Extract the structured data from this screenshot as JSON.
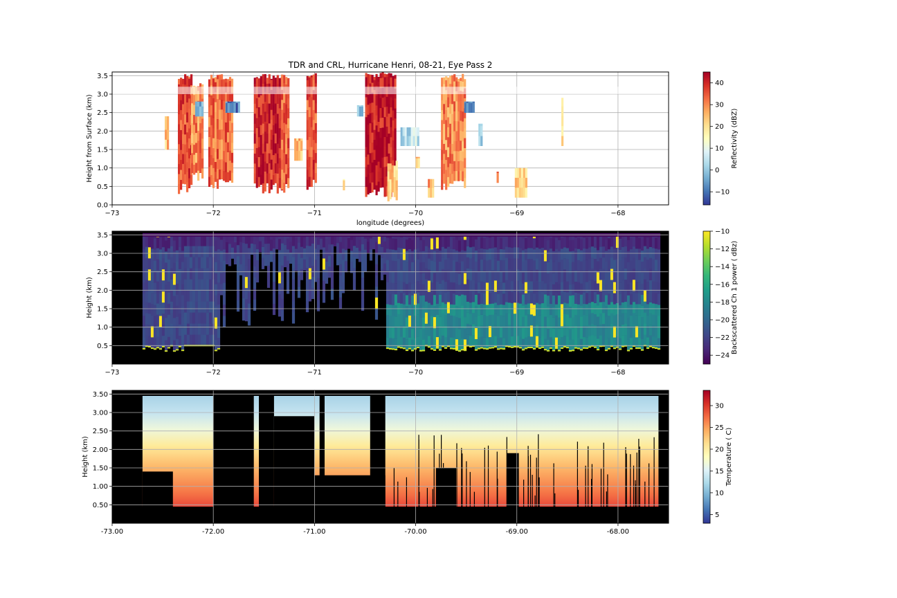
{
  "title": "TDR and CRL, Hurricane Henri, 08-21, Eye Pass 2",
  "chart_data": [
    {
      "type": "heatmap",
      "name": "tdr-reflectivity",
      "xlabel": "longitude (degrees)",
      "ylabel": "Height from Surface (km)",
      "xlim": [
        -73,
        -67.5
      ],
      "ylim": [
        0,
        3.6
      ],
      "xticks": [
        "−73",
        "−72",
        "−71",
        "−70",
        "−69",
        "−68"
      ],
      "xtick_values": [
        -73,
        -72,
        -71,
        -70,
        -69,
        -68
      ],
      "yticks": [
        "0.0",
        "0.5",
        "1.0",
        "1.5",
        "2.0",
        "2.5",
        "3.0",
        "3.5"
      ],
      "ytick_values": [
        0,
        0.5,
        1,
        1.5,
        2,
        2.5,
        3,
        3.5
      ],
      "grid": true,
      "colorbar": {
        "label": "Reflectivity (dBZ)",
        "range": [
          -16,
          45
        ],
        "ticks": [
          "−10",
          "0",
          "10",
          "20",
          "30",
          "40"
        ],
        "tick_values": [
          -10,
          0,
          10,
          20,
          30,
          40
        ],
        "colormap": [
          "#313695",
          "#4575b4",
          "#74add1",
          "#abd9e9",
          "#e0f3f8",
          "#ffffbf",
          "#fee090",
          "#fdae61",
          "#f46d43",
          "#d73027",
          "#a50026"
        ]
      },
      "bands": [
        {
          "lon": [
            -72.35,
            -72.22
          ],
          "z": [
            0.3,
            3.55
          ],
          "dbz": 36
        },
        {
          "lon": [
            -72.22,
            -72.1
          ],
          "z": [
            0.6,
            3.3
          ],
          "dbz": 30
        },
        {
          "lon": [
            -72.05,
            -71.82
          ],
          "z": [
            0.4,
            3.55
          ],
          "dbz": 33
        },
        {
          "lon": [
            -71.6,
            -71.33
          ],
          "z": [
            0.3,
            3.55
          ],
          "dbz": 40
        },
        {
          "lon": [
            -71.33,
            -71.25
          ],
          "z": [
            0.3,
            3.55
          ],
          "dbz": 34
        },
        {
          "lon": [
            -71.08,
            -70.98
          ],
          "z": [
            0.4,
            3.6
          ],
          "dbz": 36
        },
        {
          "lon": [
            -70.5,
            -70.2
          ],
          "z": [
            0.2,
            3.6
          ],
          "dbz": 42
        },
        {
          "lon": [
            -70.28,
            -70.18
          ],
          "z": [
            0.1,
            1.2
          ],
          "dbz": 24
        },
        {
          "lon": [
            -69.75,
            -69.52
          ],
          "z": [
            0.4,
            3.55
          ],
          "dbz": 30
        }
      ],
      "speckles": [
        {
          "lon": [
            -72.48,
            -72.44
          ],
          "z": [
            1.5,
            2.4
          ],
          "dbz": 24
        },
        {
          "lon": [
            -71.88,
            -71.75
          ],
          "z": [
            2.5,
            2.8
          ],
          "dbz": -8
        },
        {
          "lon": [
            -72.18,
            -72.1
          ],
          "z": [
            2.4,
            2.8
          ],
          "dbz": -5
        },
        {
          "lon": [
            -71.2,
            -71.12
          ],
          "z": [
            1.2,
            1.8
          ],
          "dbz": 24
        },
        {
          "lon": [
            -70.58,
            -70.52
          ],
          "z": [
            2.4,
            2.7
          ],
          "dbz": 2
        },
        {
          "lon": [
            -70.15,
            -69.98
          ],
          "z": [
            1.6,
            2.1
          ],
          "dbz": 4
        },
        {
          "lon": [
            -70.0,
            -69.97
          ],
          "z": [
            1.0,
            1.3
          ],
          "dbz": 22
        },
        {
          "lon": [
            -69.88,
            -69.83
          ],
          "z": [
            0.2,
            0.7
          ],
          "dbz": 26
        },
        {
          "lon": [
            -69.52,
            -69.42
          ],
          "z": [
            2.5,
            2.8
          ],
          "dbz": -10
        },
        {
          "lon": [
            -69.38,
            -69.34
          ],
          "z": [
            1.6,
            2.2
          ],
          "dbz": 4
        },
        {
          "lon": [
            -69.2,
            -69.18
          ],
          "z": [
            0.6,
            0.9
          ],
          "dbz": 32
        },
        {
          "lon": [
            -69.02,
            -68.9
          ],
          "z": [
            0.2,
            1.0
          ],
          "dbz": 22
        },
        {
          "lon": [
            -68.56,
            -68.54
          ],
          "z": [
            1.6,
            2.9
          ],
          "dbz": 18
        },
        {
          "lon": [
            -70.72,
            -70.7
          ],
          "z": [
            0.4,
            0.7
          ],
          "dbz": 22
        }
      ]
    },
    {
      "type": "heatmap",
      "name": "crl-backscatter",
      "xlabel": "",
      "ylabel": "Height (km)",
      "xlim": [
        -73,
        -67.5
      ],
      "ylim": [
        0,
        3.6
      ],
      "xticks": [
        "−73",
        "−72",
        "−71",
        "−70",
        "−69",
        "−68"
      ],
      "xtick_values": [
        -73,
        -72,
        -71,
        -70,
        -69,
        -68
      ],
      "yticks": [
        "0.5",
        "1.0",
        "1.5",
        "2.0",
        "2.5",
        "3.0",
        "3.5"
      ],
      "ytick_values": [
        0.5,
        1,
        1.5,
        2,
        2.5,
        3,
        3.5
      ],
      "grid": true,
      "colorbar": {
        "label": "Backscattered Ch 1 power ( dBz)",
        "range": [
          -25,
          -10
        ],
        "ticks": [
          "−24",
          "−22",
          "−20",
          "−18",
          "−16",
          "−14",
          "−12",
          "−10"
        ],
        "tick_values": [
          -24,
          -22,
          -20,
          -18,
          -16,
          -14,
          -12,
          -10
        ],
        "colormap": [
          "#440154",
          "#482878",
          "#3e4989",
          "#31688e",
          "#26828e",
          "#1f9e89",
          "#35b779",
          "#6ece58",
          "#b5de2b",
          "#fde725"
        ]
      },
      "data_lon_range": [
        -72.7,
        -67.6
      ]
    },
    {
      "type": "heatmap",
      "name": "crl-temperature",
      "xlabel": "",
      "ylabel": "Height (km)",
      "xlim": [
        -73,
        -67.5
      ],
      "ylim": [
        0,
        3.6
      ],
      "xticks": [
        "-73.00",
        "-72.00",
        "-71.00",
        "-70.00",
        "-69.00",
        "-68.00"
      ],
      "xtick_values": [
        -73,
        -72,
        -71,
        -70,
        -69,
        -68
      ],
      "yticks": [
        "0.50",
        "1.00",
        "1.50",
        "2.00",
        "2.50",
        "3.00",
        "3.50"
      ],
      "ytick_values": [
        0.5,
        1,
        1.5,
        2,
        2.5,
        3,
        3.5
      ],
      "grid": true,
      "colorbar": {
        "label": "Temperature ( C)",
        "range": [
          3,
          33.5
        ],
        "ticks": [
          "5",
          "10",
          "15",
          "20",
          "25",
          "30"
        ],
        "tick_values": [
          5,
          10,
          15,
          20,
          25,
          30
        ],
        "colormap": [
          "#313695",
          "#4575b4",
          "#74add1",
          "#abd9e9",
          "#e0f3f8",
          "#ffffbf",
          "#fee090",
          "#fdae61",
          "#f46d43",
          "#d73027",
          "#a50026"
        ]
      },
      "data_lon_range": [
        -72.7,
        -67.6
      ]
    }
  ]
}
